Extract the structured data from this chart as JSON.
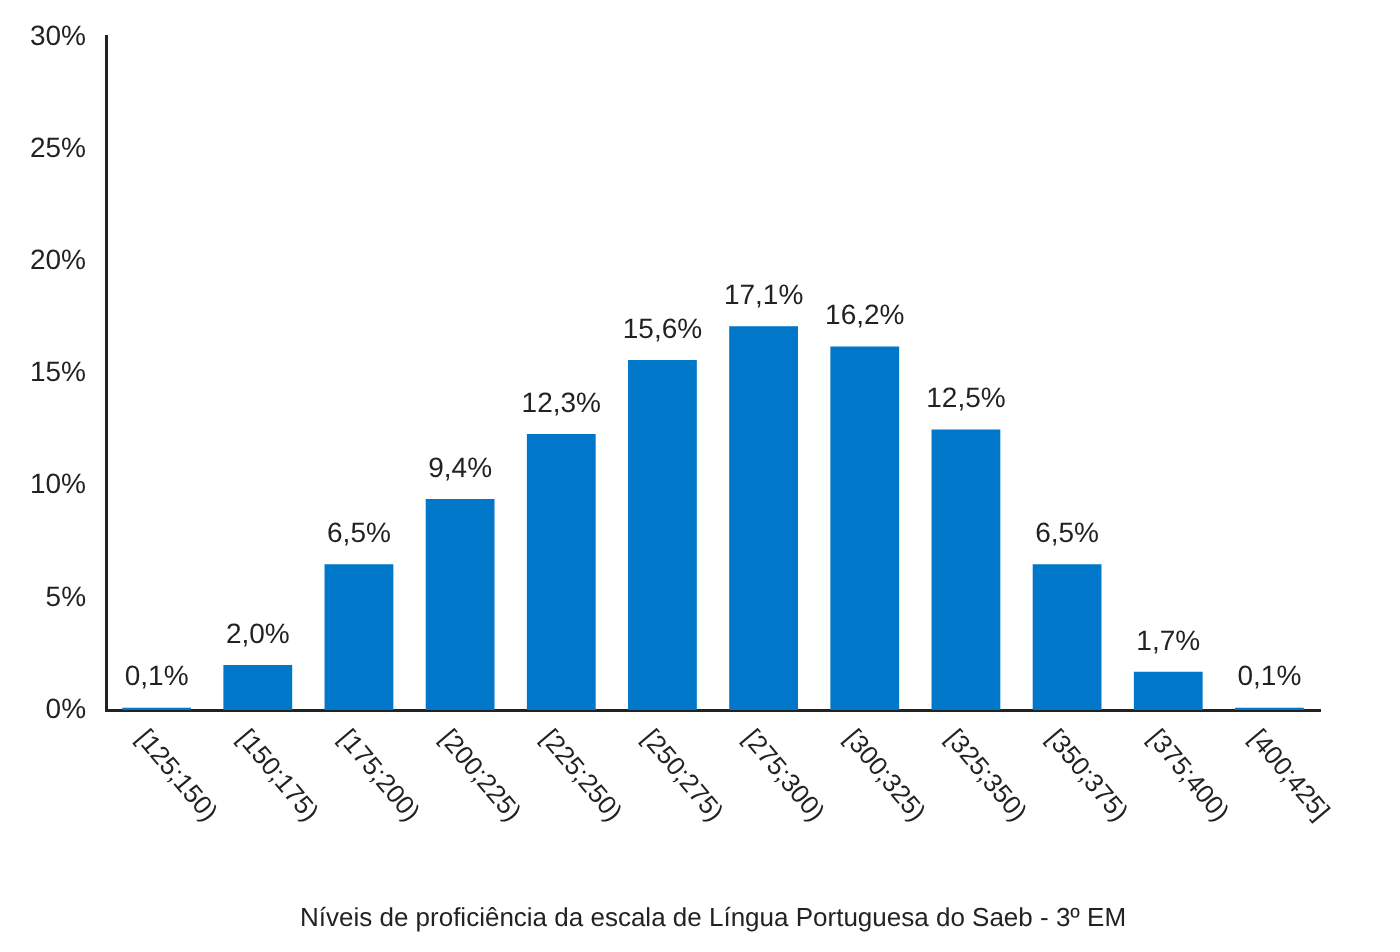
{
  "chart_data": {
    "type": "bar",
    "xlabel": "Níveis de proficiência da escala de Língua Portuguesa do Saeb - 3º EM",
    "categories": [
      "[125;150)",
      "[150;175)",
      "[175;200)",
      "[200;225)",
      "[225;250)",
      "[250;275)",
      "[275;300)",
      "[300;325)",
      "[325;350)",
      "[350;375)",
      "[375;400)",
      "[400;425]"
    ],
    "values": [
      0.1,
      2.0,
      6.5,
      9.4,
      12.3,
      15.6,
      17.1,
      16.2,
      12.5,
      6.5,
      1.7,
      0.1
    ],
    "value_labels": [
      "0,1%",
      "2,0%",
      "6,5%",
      "9,4%",
      "12,3%",
      "15,6%",
      "17,1%",
      "16,2%",
      "12,5%",
      "6,5%",
      "1,7%",
      "0,1%"
    ],
    "color": "#0077c8",
    "ylim": [
      0,
      30
    ],
    "yticks": [
      {
        "value": 0,
        "label": "0%"
      },
      {
        "value": 5,
        "label": "5%"
      },
      {
        "value": 10,
        "label": "10%"
      },
      {
        "value": 15,
        "label": "15%"
      },
      {
        "value": 20,
        "label": "20%"
      },
      {
        "value": 25,
        "label": "25%"
      },
      {
        "value": 30,
        "label": "30%"
      }
    ],
    "grid": false,
    "legend": false
  }
}
